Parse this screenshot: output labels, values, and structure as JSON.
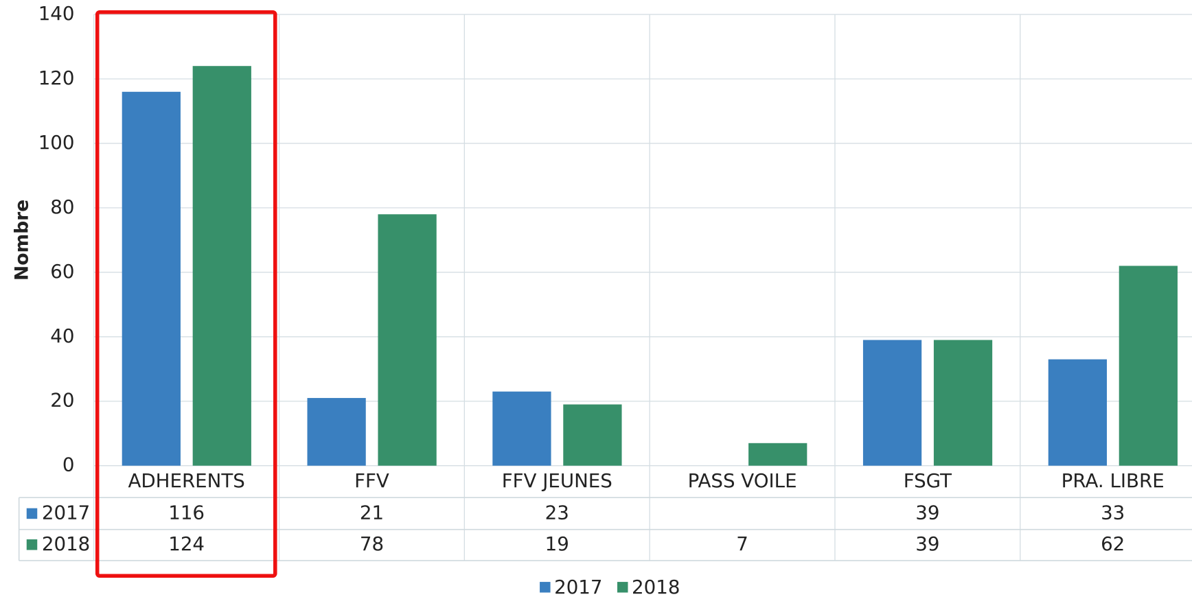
{
  "chart_data": {
    "type": "bar",
    "y_label": "Nombre",
    "categories": [
      "ADHERENTS",
      "FFV",
      "FFV JEUNES",
      "PASS VOILE",
      "FSGT",
      "PRA. LIBRE"
    ],
    "series": [
      {
        "name": "2017",
        "color": "#3a7fc0",
        "values": [
          116,
          21,
          23,
          null,
          39,
          33
        ]
      },
      {
        "name": "2018",
        "color": "#37906a",
        "values": [
          124,
          78,
          19,
          7,
          39,
          62
        ]
      }
    ],
    "ylim": [
      0,
      140
    ],
    "yticks": [
      0,
      20,
      40,
      60,
      80,
      100,
      120,
      140
    ],
    "grid": true,
    "legend": "bottom"
  }
}
